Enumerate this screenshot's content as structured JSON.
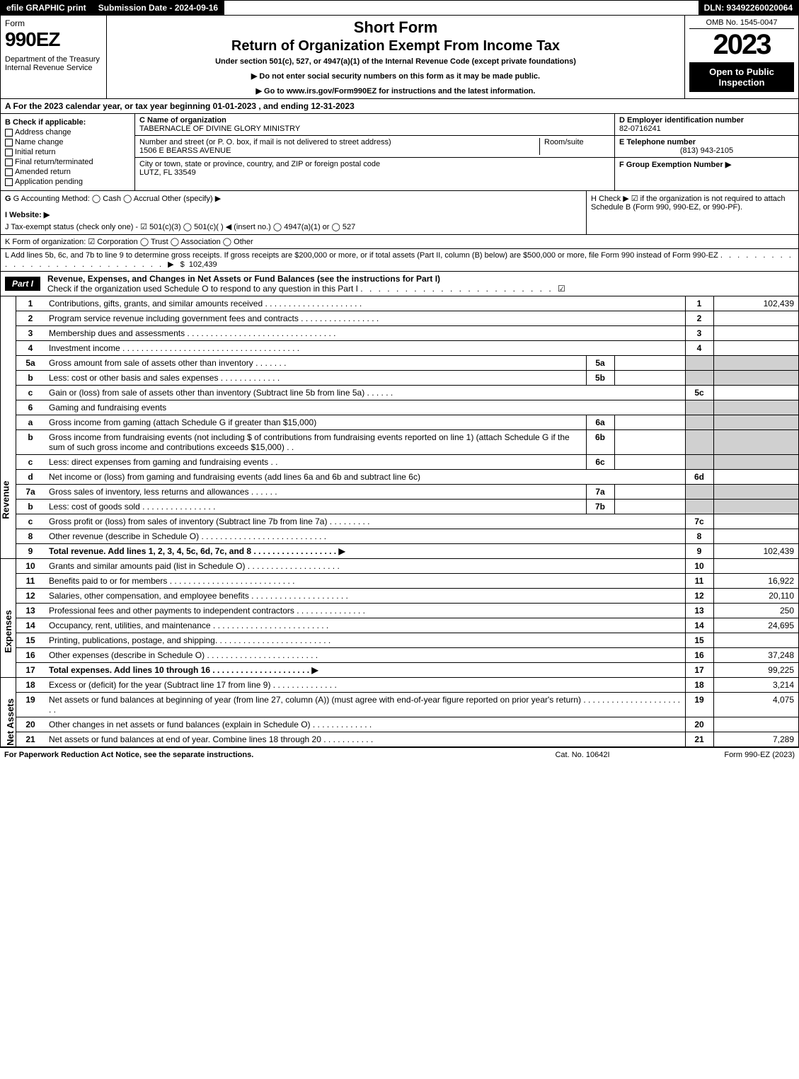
{
  "topbar": {
    "efile": "efile GRAPHIC print",
    "subm": "Submission Date - 2024-09-16",
    "dln": "DLN: 93492260020064"
  },
  "header": {
    "form_word": "Form",
    "form_num": "990EZ",
    "dept": "Department of the Treasury\nInternal Revenue Service",
    "sf": "Short Form",
    "roei": "Return of Organization Exempt From Income Tax",
    "under": "Under section 501(c), 527, or 4947(a)(1) of the Internal Revenue Code (except private foundations)",
    "note1": "▶ Do not enter social security numbers on this form as it may be made public.",
    "note2": "▶ Go to www.irs.gov/Form990EZ for instructions and the latest information.",
    "omb": "OMB No. 1545-0047",
    "year": "2023",
    "insp": "Open to Public Inspection"
  },
  "rowA": "A  For the 2023 calendar year, or tax year beginning 01-01-2023 , and ending 12-31-2023",
  "secB": {
    "b_title": "B  Check if applicable:",
    "b_opts": [
      "Address change",
      "Name change",
      "Initial return",
      "Final return/terminated",
      "Amended return",
      "Application pending"
    ],
    "c_label": "C Name of organization",
    "c_name": "TABERNACLE OF DIVINE GLORY MINISTRY",
    "addr_label": "Number and street (or P. O. box, if mail is not delivered to street address)",
    "room": "Room/suite",
    "addr": "1506 E BEARSS AVENUE",
    "city_label": "City or town, state or province, country, and ZIP or foreign postal code",
    "city": "LUTZ, FL  33549",
    "d_label": "D Employer identification number",
    "d_val": "82-0716241",
    "e_label": "E Telephone number",
    "e_val": "(813) 943-2105",
    "f_label": "F Group Exemption Number  ▶"
  },
  "gih": {
    "g": "G Accounting Method:   ◯ Cash   ◯ Accrual   Other (specify) ▶",
    "h": "H  Check ▶ ☑ if the organization is not required to attach Schedule B (Form 990, 990-EZ, or 990-PF).",
    "i": "I Website: ▶",
    "j": "J Tax-exempt status (check only one) - ☑ 501(c)(3) ◯ 501(c)(  ) ◀ (insert no.) ◯ 4947(a)(1) or ◯ 527"
  },
  "k": "K Form of organization:  ☑ Corporation   ◯ Trust   ◯ Association   ◯ Other",
  "l": {
    "text": "L Add lines 5b, 6c, and 7b to line 9 to determine gross receipts. If gross receipts are $200,000 or more, or if total assets (Part II, column (B) below) are $500,000 or more, file Form 990 instead of Form 990-EZ",
    "dots": ". . . . . . . . . . . . . . . . . . . . . . . . . . . .  ▶ $",
    "val": "102,439"
  },
  "part1": {
    "label": "Part I",
    "title": "Revenue, Expenses, and Changes in Net Assets or Fund Balances (see the instructions for Part I)",
    "sub": "Check if the organization used Schedule O to respond to any question in this Part I",
    "dots": ". . . . . . . . . . . . . . . . . . . . . . ☑"
  },
  "sections": {
    "rev": "Revenue",
    "exp": "Expenses",
    "na": "Net Assets"
  },
  "rows": [
    {
      "sec": "rev",
      "n": "1",
      "d": "Contributions, gifts, grants, and similar amounts received . . . . . . . . . . . . . . . . . . . . .",
      "num": "1",
      "v": "102,439"
    },
    {
      "sec": "rev",
      "n": "2",
      "d": "Program service revenue including government fees and contracts . . . . . . . . . . . . . . . . .",
      "num": "2",
      "v": ""
    },
    {
      "sec": "rev",
      "n": "3",
      "d": "Membership dues and assessments . . . . . . . . . . . . . . . . . . . . . . . . . . . . . . . .",
      "num": "3",
      "v": ""
    },
    {
      "sec": "rev",
      "n": "4",
      "d": "Investment income . . . . . . . . . . . . . . . . . . . . . . . . . . . . . . . . . . . . . .",
      "num": "4",
      "v": ""
    },
    {
      "sec": "rev",
      "n": "5a",
      "d": "Gross amount from sale of assets other than inventory . . . . . . .",
      "mini": "5a",
      "mv": "",
      "shade": true
    },
    {
      "sec": "rev",
      "n": "b",
      "d": "Less: cost or other basis and sales expenses . . . . . . . . . . . . .",
      "mini": "5b",
      "mv": "",
      "shade": true
    },
    {
      "sec": "rev",
      "n": "c",
      "d": "Gain or (loss) from sale of assets other than inventory (Subtract line 5b from line 5a) . . . . . .",
      "num": "5c",
      "v": ""
    },
    {
      "sec": "rev",
      "n": "6",
      "d": "Gaming and fundraising events",
      "shade": true,
      "nobox": true
    },
    {
      "sec": "rev",
      "n": "a",
      "d": "Gross income from gaming (attach Schedule G if greater than $15,000)",
      "mini": "6a",
      "mv": "",
      "shade": true
    },
    {
      "sec": "rev",
      "n": "b",
      "d": "Gross income from fundraising events (not including $                    of contributions from fundraising events reported on line 1) (attach Schedule G if the sum of such gross income and contributions exceeds $15,000)   . .",
      "mini": "6b",
      "mv": "",
      "shade": true
    },
    {
      "sec": "rev",
      "n": "c",
      "d": "Less: direct expenses from gaming and fundraising events   . .",
      "mini": "6c",
      "mv": "",
      "shade": true
    },
    {
      "sec": "rev",
      "n": "d",
      "d": "Net income or (loss) from gaming and fundraising events (add lines 6a and 6b and subtract line 6c)",
      "num": "6d",
      "v": ""
    },
    {
      "sec": "rev",
      "n": "7a",
      "d": "Gross sales of inventory, less returns and allowances . . . . . .",
      "mini": "7a",
      "mv": "",
      "shade": true
    },
    {
      "sec": "rev",
      "n": "b",
      "d": "Less: cost of goods sold         . . . . . . . . . . . . . . . .",
      "mini": "7b",
      "mv": "",
      "shade": true
    },
    {
      "sec": "rev",
      "n": "c",
      "d": "Gross profit or (loss) from sales of inventory (Subtract line 7b from line 7a) . . . . . . . . .",
      "num": "7c",
      "v": ""
    },
    {
      "sec": "rev",
      "n": "8",
      "d": "Other revenue (describe in Schedule O) . . . . . . . . . . . . . . . . . . . . . . . . . . .",
      "num": "8",
      "v": ""
    },
    {
      "sec": "rev",
      "n": "9",
      "d": "Total revenue. Add lines 1, 2, 3, 4, 5c, 6d, 7c, and 8  . . . . . . . . . . . . . . . . . .  ▶",
      "num": "9",
      "v": "102,439",
      "bold": true
    },
    {
      "sec": "exp",
      "n": "10",
      "d": "Grants and similar amounts paid (list in Schedule O) . . . . . . . . . . . . . . . . . . . .",
      "num": "10",
      "v": ""
    },
    {
      "sec": "exp",
      "n": "11",
      "d": "Benefits paid to or for members       . . . . . . . . . . . . . . . . . . . . . . . . . . .",
      "num": "11",
      "v": "16,922"
    },
    {
      "sec": "exp",
      "n": "12",
      "d": "Salaries, other compensation, and employee benefits . . . . . . . . . . . . . . . . . . . . .",
      "num": "12",
      "v": "20,110"
    },
    {
      "sec": "exp",
      "n": "13",
      "d": "Professional fees and other payments to independent contractors . . . . . . . . . . . . . . .",
      "num": "13",
      "v": "250"
    },
    {
      "sec": "exp",
      "n": "14",
      "d": "Occupancy, rent, utilities, and maintenance . . . . . . . . . . . . . . . . . . . . . . . . .",
      "num": "14",
      "v": "24,695"
    },
    {
      "sec": "exp",
      "n": "15",
      "d": "Printing, publications, postage, and shipping. . . . . . . . . . . . . . . . . . . . . . . . .",
      "num": "15",
      "v": ""
    },
    {
      "sec": "exp",
      "n": "16",
      "d": "Other expenses (describe in Schedule O)      . . . . . . . . . . . . . . . . . . . . . . . .",
      "num": "16",
      "v": "37,248"
    },
    {
      "sec": "exp",
      "n": "17",
      "d": "Total expenses. Add lines 10 through 16      . . . . . . . . . . . . . . . . . . . . .  ▶",
      "num": "17",
      "v": "99,225",
      "bold": true
    },
    {
      "sec": "na",
      "n": "18",
      "d": "Excess or (deficit) for the year (Subtract line 17 from line 9)         . . . . . . . . . . . . . .",
      "num": "18",
      "v": "3,214"
    },
    {
      "sec": "na",
      "n": "19",
      "d": "Net assets or fund balances at beginning of year (from line 27, column (A)) (must agree with end-of-year figure reported on prior year's return) . . . . . . . . . . . . . . . . . . . . . . .",
      "num": "19",
      "v": "4,075"
    },
    {
      "sec": "na",
      "n": "20",
      "d": "Other changes in net assets or fund balances (explain in Schedule O) . . . . . . . . . . . . .",
      "num": "20",
      "v": ""
    },
    {
      "sec": "na",
      "n": "21",
      "d": "Net assets or fund balances at end of year. Combine lines 18 through 20 . . . . . . . . . . .",
      "num": "21",
      "v": "7,289"
    }
  ],
  "footer": {
    "l": "For Paperwork Reduction Act Notice, see the separate instructions.",
    "c": "Cat. No. 10642I",
    "r": "Form 990-EZ (2023)"
  }
}
